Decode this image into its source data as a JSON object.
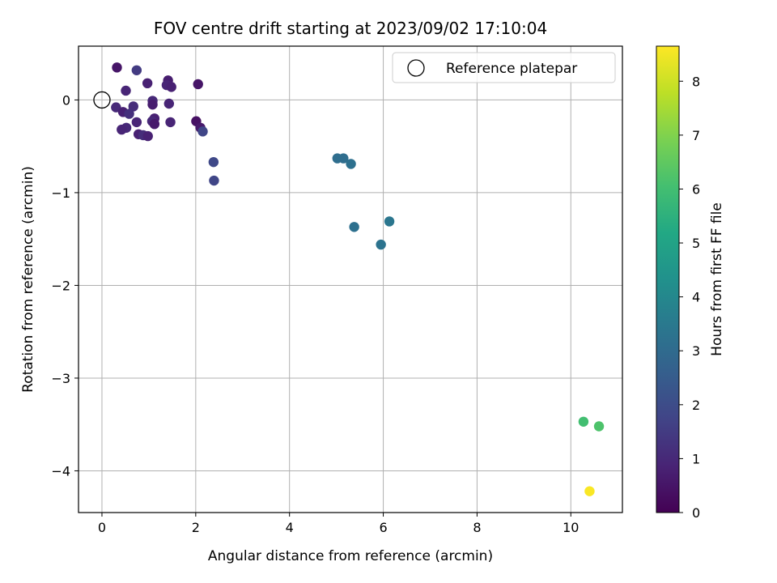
{
  "chart_data": {
    "type": "scatter",
    "title": "FOV centre drift starting at 2023/09/02 17:10:04",
    "xlabel": "Angular distance from reference (arcmin)",
    "ylabel": "Rotation from reference (arcmin)",
    "xlim": [
      -0.5,
      11.1
    ],
    "ylim": [
      -4.45,
      0.58
    ],
    "xticks": [
      0,
      2,
      4,
      6,
      8,
      10
    ],
    "yticks": [
      0,
      -1,
      -2,
      -3,
      -4
    ],
    "grid": true,
    "legend": {
      "placement": "top-right",
      "entries": [
        "Reference platepar"
      ]
    },
    "reference_point": {
      "x": 0,
      "y": 0
    },
    "colorbar": {
      "label": "Hours from first FF file",
      "range": [
        0,
        8.65
      ],
      "ticks": [
        0,
        1,
        2,
        3,
        4,
        5,
        6,
        7,
        8
      ],
      "colormap": "viridis"
    },
    "series": [
      {
        "points": [
          {
            "x": 0.32,
            "y": 0.35,
            "c": 0.5
          },
          {
            "x": 0.74,
            "y": 0.32,
            "c": 1.5
          },
          {
            "x": 1.41,
            "y": 0.21,
            "c": 0.7
          },
          {
            "x": 0.97,
            "y": 0.18,
            "c": 0.8
          },
          {
            "x": 1.38,
            "y": 0.16,
            "c": 0.9
          },
          {
            "x": 1.48,
            "y": 0.14,
            "c": 0.8
          },
          {
            "x": 2.05,
            "y": 0.17,
            "c": 0.5
          },
          {
            "x": 0.51,
            "y": 0.1,
            "c": 0.9
          },
          {
            "x": 1.08,
            "y": -0.01,
            "c": 1.0
          },
          {
            "x": 1.43,
            "y": -0.04,
            "c": 0.9
          },
          {
            "x": 1.08,
            "y": -0.05,
            "c": 0.7
          },
          {
            "x": 0.67,
            "y": -0.07,
            "c": 1.1
          },
          {
            "x": 0.3,
            "y": -0.08,
            "c": 1.0
          },
          {
            "x": 0.45,
            "y": -0.13,
            "c": 0.8
          },
          {
            "x": 0.58,
            "y": -0.15,
            "c": 1.2
          },
          {
            "x": 1.12,
            "y": -0.2,
            "c": 0.8
          },
          {
            "x": 1.07,
            "y": -0.23,
            "c": 1.0
          },
          {
            "x": 0.74,
            "y": -0.24,
            "c": 0.9
          },
          {
            "x": 1.46,
            "y": -0.24,
            "c": 0.9
          },
          {
            "x": 1.12,
            "y": -0.26,
            "c": 0.6
          },
          {
            "x": 2.01,
            "y": -0.23,
            "c": 0.4
          },
          {
            "x": 2.1,
            "y": -0.3,
            "c": 0.6
          },
          {
            "x": 0.52,
            "y": -0.3,
            "c": 1.0
          },
          {
            "x": 0.42,
            "y": -0.32,
            "c": 0.9
          },
          {
            "x": 0.78,
            "y": -0.37,
            "c": 0.8
          },
          {
            "x": 0.88,
            "y": -0.38,
            "c": 1.1
          },
          {
            "x": 0.98,
            "y": -0.39,
            "c": 0.8
          },
          {
            "x": 2.15,
            "y": -0.34,
            "c": 1.8
          },
          {
            "x": 2.38,
            "y": -0.67,
            "c": 1.9
          },
          {
            "x": 2.39,
            "y": -0.87,
            "c": 1.8
          },
          {
            "x": 5.02,
            "y": -0.63,
            "c": 3.1
          },
          {
            "x": 5.15,
            "y": -0.63,
            "c": 3.1
          },
          {
            "x": 5.31,
            "y": -0.69,
            "c": 3.2
          },
          {
            "x": 5.38,
            "y": -1.37,
            "c": 3.2
          },
          {
            "x": 6.13,
            "y": -1.31,
            "c": 3.4
          },
          {
            "x": 5.95,
            "y": -1.56,
            "c": 3.3
          },
          {
            "x": 10.27,
            "y": -3.47,
            "c": 6.0
          },
          {
            "x": 10.6,
            "y": -3.52,
            "c": 6.2
          },
          {
            "x": 10.4,
            "y": -4.22,
            "c": 8.6
          }
        ]
      }
    ]
  }
}
